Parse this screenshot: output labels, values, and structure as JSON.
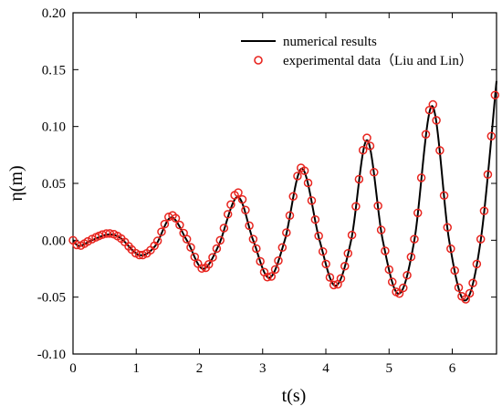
{
  "chart_data": {
    "type": "line",
    "title": "",
    "xlabel": "t(s)",
    "ylabel": "η(m)",
    "xlim": [
      0,
      6.7
    ],
    "ylim": [
      -0.1,
      0.2
    ],
    "xticks": [
      0,
      1,
      2,
      3,
      4,
      5,
      6
    ],
    "xtick_labels": [
      "0",
      "1",
      "2",
      "3",
      "4",
      "5",
      "6"
    ],
    "yticks": [
      -0.1,
      -0.05,
      0.0,
      0.05,
      0.1,
      0.15,
      0.2
    ],
    "ytick_labels": [
      "-0.10",
      "-0.05",
      "0.00",
      "0.05",
      "0.10",
      "0.15",
      "0.20"
    ],
    "grid": false,
    "legend_position": "top-right",
    "colors": {
      "line": "#000000",
      "markers": "#e8251f"
    },
    "series": [
      {
        "name": "numerical results",
        "style": "line",
        "x": [
          0,
          0.1,
          0.3,
          0.55,
          0.75,
          1.05,
          1.3,
          1.55,
          1.8,
          2.05,
          2.3,
          2.6,
          2.85,
          3.1,
          3.35,
          3.62,
          3.9,
          4.15,
          4.4,
          4.65,
          4.9,
          5.15,
          5.4,
          5.68,
          5.95,
          6.2,
          6.45,
          6.7
        ],
        "y": [
          0,
          -0.005,
          0.0,
          0.005,
          0.002,
          -0.013,
          -0.005,
          0.02,
          0.0,
          -0.025,
          -0.005,
          0.038,
          0.0,
          -0.033,
          0.0,
          0.063,
          0.0,
          -0.04,
          0.0,
          0.088,
          0.0,
          -0.047,
          0.0,
          0.118,
          0.0,
          -0.053,
          0.0,
          0.14
        ]
      },
      {
        "name": "experimental data（Liu and Lin）",
        "style": "markers",
        "x": [
          0,
          0.1,
          0.3,
          0.55,
          0.75,
          1.05,
          1.3,
          1.55,
          1.8,
          2.05,
          2.3,
          2.6,
          2.85,
          3.1,
          3.35,
          3.62,
          3.9,
          4.15,
          4.4,
          4.65,
          4.9,
          5.15,
          5.4,
          5.68,
          5.95,
          6.2,
          6.45,
          6.7
        ],
        "y": [
          0,
          -0.005,
          0.001,
          0.006,
          0.002,
          -0.013,
          -0.004,
          0.022,
          0.001,
          -0.025,
          -0.004,
          0.042,
          0.001,
          -0.033,
          0.001,
          0.064,
          0.001,
          -0.04,
          0.001,
          0.09,
          0.001,
          -0.047,
          0.001,
          0.12,
          0.001,
          -0.052,
          0.001,
          0.142
        ]
      }
    ]
  }
}
